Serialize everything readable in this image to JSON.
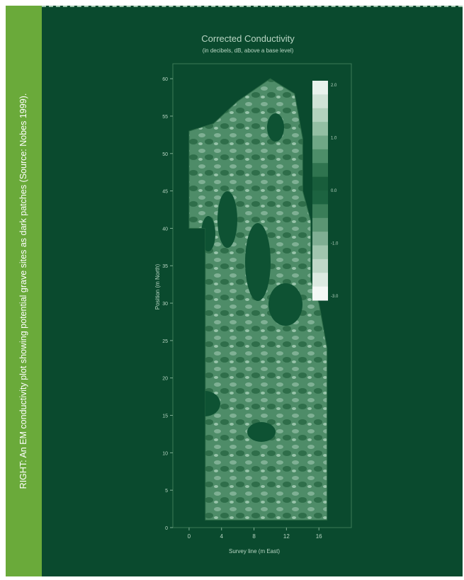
{
  "caption": "RIGHT: An EM conductivity plot showing potential grave sites as dark patches  (Source: Nobes 1999).",
  "colors": {
    "panel": "#0a4a2e",
    "caption_strip": "#6aaa3a",
    "plot_text": "#b9d6c4"
  },
  "chart_data": {
    "type": "heatmap",
    "title": "Corrected Conductivity",
    "subtitle": "(in decibels, dB, above a base level)",
    "xlabel": "Survey line (m East)",
    "ylabel": "Position (m North)",
    "xlim": [
      -2,
      20
    ],
    "ylim": [
      0,
      62
    ],
    "x_ticks": [
      "0",
      "4",
      "8",
      "12",
      "16"
    ],
    "y_ticks": [
      "0",
      "5",
      "10",
      "15",
      "20",
      "25",
      "30",
      "35",
      "40",
      "45",
      "50",
      "55",
      "60"
    ],
    "colorbar": {
      "range": [
        -3.0,
        2.0
      ],
      "tick_labels": [
        "2.0",
        "1.0",
        "0.0",
        "-1.0",
        "-3.0"
      ]
    },
    "survey_outline": [
      [
        2,
        1
      ],
      [
        17,
        1
      ],
      [
        17,
        24
      ],
      [
        16,
        30
      ],
      [
        15,
        33
      ],
      [
        15,
        41
      ],
      [
        14,
        45
      ],
      [
        14,
        52
      ],
      [
        13,
        58
      ],
      [
        10,
        60
      ],
      [
        6,
        57
      ],
      [
        3,
        54
      ],
      [
        0,
        53
      ],
      [
        0,
        40
      ],
      [
        2,
        40
      ]
    ],
    "grid": false,
    "legend": "right"
  }
}
